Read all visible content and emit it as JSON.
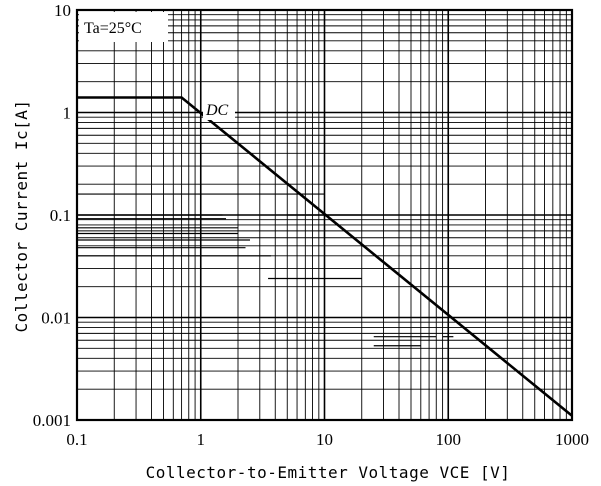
{
  "chart_data": {
    "type": "line",
    "x_scale": "log",
    "y_scale": "log",
    "xlim": [
      0.1,
      1000
    ],
    "ylim": [
      0.001,
      10
    ],
    "grid": true,
    "xlabel": "Collector-to-Emitter Voltage VCE [V]",
    "ylabel": "Collector Current Ic[A]",
    "annotation": "Ta=25°C",
    "x_ticks": [
      {
        "value": 0.1,
        "label": "0.1"
      },
      {
        "value": 1,
        "label": "1"
      },
      {
        "value": 10,
        "label": "10"
      },
      {
        "value": 100,
        "label": "100"
      },
      {
        "value": 1000,
        "label": "1000"
      }
    ],
    "y_ticks": [
      {
        "value": 0.001,
        "label": "0.001"
      },
      {
        "value": 0.01,
        "label": "0.01"
      },
      {
        "value": 0.1,
        "label": "0.1"
      },
      {
        "value": 1,
        "label": "1"
      },
      {
        "value": 10,
        "label": "10"
      }
    ],
    "series": [
      {
        "name": "DC",
        "x": [
          0.1,
          0.7,
          1000
        ],
        "y": [
          1.4,
          1.4,
          0.0011
        ]
      }
    ],
    "extra_strokes": [
      {
        "y": 0.16,
        "x": [
          0.1,
          10
        ]
      },
      {
        "y": 0.1,
        "x": [
          0.1,
          1.5
        ]
      },
      {
        "y": 0.092,
        "x": [
          0.1,
          1.6
        ]
      },
      {
        "y": 0.075,
        "x": [
          0.1,
          2
        ]
      },
      {
        "y": 0.066,
        "x": [
          0.1,
          2
        ]
      },
      {
        "y": 0.057,
        "x": [
          0.1,
          2.5
        ]
      },
      {
        "y": 0.048,
        "x": [
          0.1,
          2.3
        ]
      },
      {
        "y": 0.04,
        "x": [
          0.1,
          3.7
        ]
      },
      {
        "y": 0.1,
        "x": [
          5,
          20
        ]
      },
      {
        "y": 0.024,
        "x": [
          3.5,
          20
        ]
      },
      {
        "y": 0.0065,
        "x": [
          25,
          80
        ]
      },
      {
        "y": 0.0053,
        "x": [
          25,
          60
        ]
      },
      {
        "y": 0.0065,
        "x": [
          90,
          110
        ]
      }
    ]
  }
}
